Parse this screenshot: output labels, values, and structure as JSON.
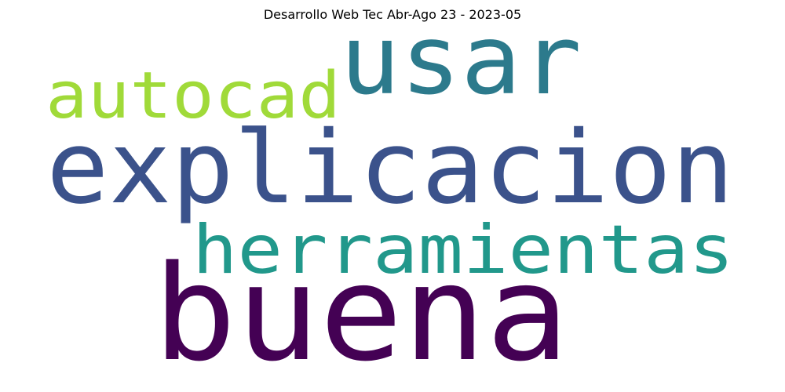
{
  "title": "Desarrollo Web Tec Abr-Ago 23 - 2023-05",
  "words": [
    {
      "text": "usar",
      "color": "#2c7a8c"
    },
    {
      "text": "autocad",
      "color": "#a0da39"
    },
    {
      "text": "explicacion",
      "color": "#3b528b"
    },
    {
      "text": "herramientas",
      "color": "#21988b"
    },
    {
      "text": "buena",
      "color": "#440154"
    }
  ]
}
